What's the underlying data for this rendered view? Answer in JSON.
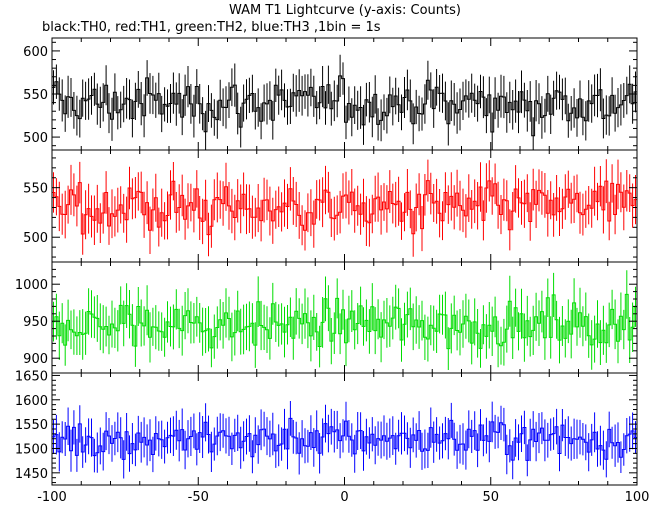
{
  "chart_data": {
    "type": "line",
    "title": "WAM T1 Lightcurve (y-axis: Counts)",
    "subtitle": "black:TH0, red:TH1, green:TH2, blue:TH3 ,1bin = 1s",
    "x_ticks": [
      "-100",
      "-50",
      "0",
      "50",
      "100"
    ],
    "xlim": [
      -100,
      100
    ],
    "grid": false,
    "panels": [
      {
        "name": "TH0",
        "color": "#000000",
        "ylim": [
          485,
          615
        ],
        "y_ticks": [
          "500",
          "550",
          "600"
        ],
        "baseline": 540,
        "amp": 27,
        "err": 22
      },
      {
        "name": "TH1",
        "color": "#ff0000",
        "ylim": [
          475,
          588
        ],
        "y_ticks": [
          "500",
          "550"
        ],
        "baseline": 530,
        "amp": 25,
        "err": 22
      },
      {
        "name": "TH2",
        "color": "#00dd00",
        "ylim": [
          880,
          1030
        ],
        "y_ticks": [
          "900",
          "950",
          "1000"
        ],
        "baseline": 945,
        "amp": 30,
        "err": 30
      },
      {
        "name": "TH3",
        "color": "#0000ff",
        "ylim": [
          1425,
          1655
        ],
        "y_ticks": [
          "1450",
          "1500",
          "1550",
          "1600",
          "1650"
        ],
        "baseline": 1520,
        "amp": 40,
        "err": 38
      }
    ]
  }
}
